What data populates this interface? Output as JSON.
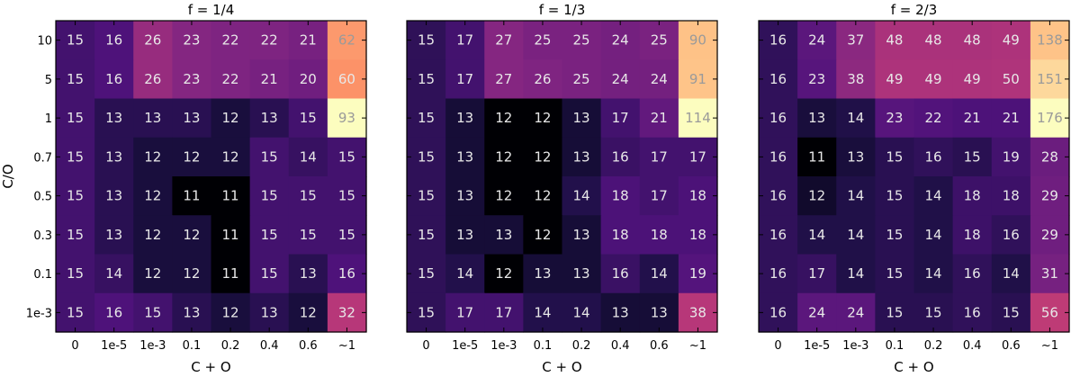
{
  "chart_data": [
    {
      "type": "heatmap",
      "title": "f = 1/4",
      "xlabel": "C + O",
      "ylabel": "C/O",
      "x_categories": [
        "0",
        "1e-5",
        "1e-3",
        "0.1",
        "0.2",
        "0.4",
        "0.6",
        "~1"
      ],
      "y_categories": [
        "10",
        "5",
        "1",
        "0.7",
        "0.5",
        "0.3",
        "0.1",
        "1e-3"
      ],
      "values": [
        [
          15,
          16,
          26,
          23,
          22,
          22,
          21,
          62
        ],
        [
          15,
          16,
          26,
          23,
          22,
          21,
          20,
          60
        ],
        [
          15,
          13,
          13,
          13,
          12,
          13,
          15,
          93
        ],
        [
          15,
          13,
          12,
          12,
          12,
          15,
          14,
          15
        ],
        [
          15,
          13,
          12,
          11,
          11,
          15,
          15,
          15
        ],
        [
          15,
          13,
          12,
          12,
          11,
          15,
          15,
          15
        ],
        [
          15,
          14,
          12,
          12,
          11,
          15,
          13,
          16
        ],
        [
          15,
          16,
          15,
          13,
          12,
          13,
          12,
          32
        ]
      ]
    },
    {
      "type": "heatmap",
      "title": "f = 1/3",
      "xlabel": "C + O",
      "ylabel": "",
      "x_categories": [
        "0",
        "1e-5",
        "1e-3",
        "0.1",
        "0.2",
        "0.4",
        "0.6",
        "~1"
      ],
      "y_categories": [
        "10",
        "5",
        "1",
        "0.7",
        "0.5",
        "0.3",
        "0.1",
        "1e-3"
      ],
      "values": [
        [
          15,
          17,
          27,
          25,
          25,
          24,
          25,
          90
        ],
        [
          15,
          17,
          27,
          26,
          25,
          24,
          24,
          91
        ],
        [
          15,
          13,
          12,
          12,
          13,
          17,
          21,
          114
        ],
        [
          15,
          13,
          12,
          12,
          13,
          16,
          17,
          17
        ],
        [
          15,
          13,
          12,
          12,
          14,
          18,
          17,
          18
        ],
        [
          15,
          13,
          13,
          12,
          13,
          18,
          18,
          18
        ],
        [
          15,
          14,
          12,
          13,
          13,
          16,
          14,
          19
        ],
        [
          15,
          17,
          17,
          14,
          14,
          13,
          13,
          38
        ]
      ]
    },
    {
      "type": "heatmap",
      "title": "f = 2/3",
      "xlabel": "C + O",
      "ylabel": "",
      "x_categories": [
        "0",
        "1e-5",
        "1e-3",
        "0.1",
        "0.2",
        "0.4",
        "0.6",
        "~1"
      ],
      "y_categories": [
        "10",
        "5",
        "1",
        "0.7",
        "0.5",
        "0.3",
        "0.1",
        "1e-3"
      ],
      "values": [
        [
          16,
          24,
          37,
          48,
          48,
          48,
          49,
          138
        ],
        [
          16,
          23,
          38,
          49,
          49,
          49,
          50,
          151
        ],
        [
          16,
          13,
          14,
          23,
          22,
          21,
          21,
          176
        ],
        [
          16,
          11,
          13,
          15,
          16,
          15,
          19,
          28
        ],
        [
          16,
          12,
          14,
          15,
          14,
          18,
          18,
          29
        ],
        [
          16,
          14,
          14,
          15,
          14,
          18,
          16,
          29
        ],
        [
          16,
          17,
          14,
          15,
          14,
          16,
          14,
          31
        ],
        [
          16,
          24,
          24,
          15,
          15,
          16,
          15,
          56
        ]
      ]
    }
  ]
}
